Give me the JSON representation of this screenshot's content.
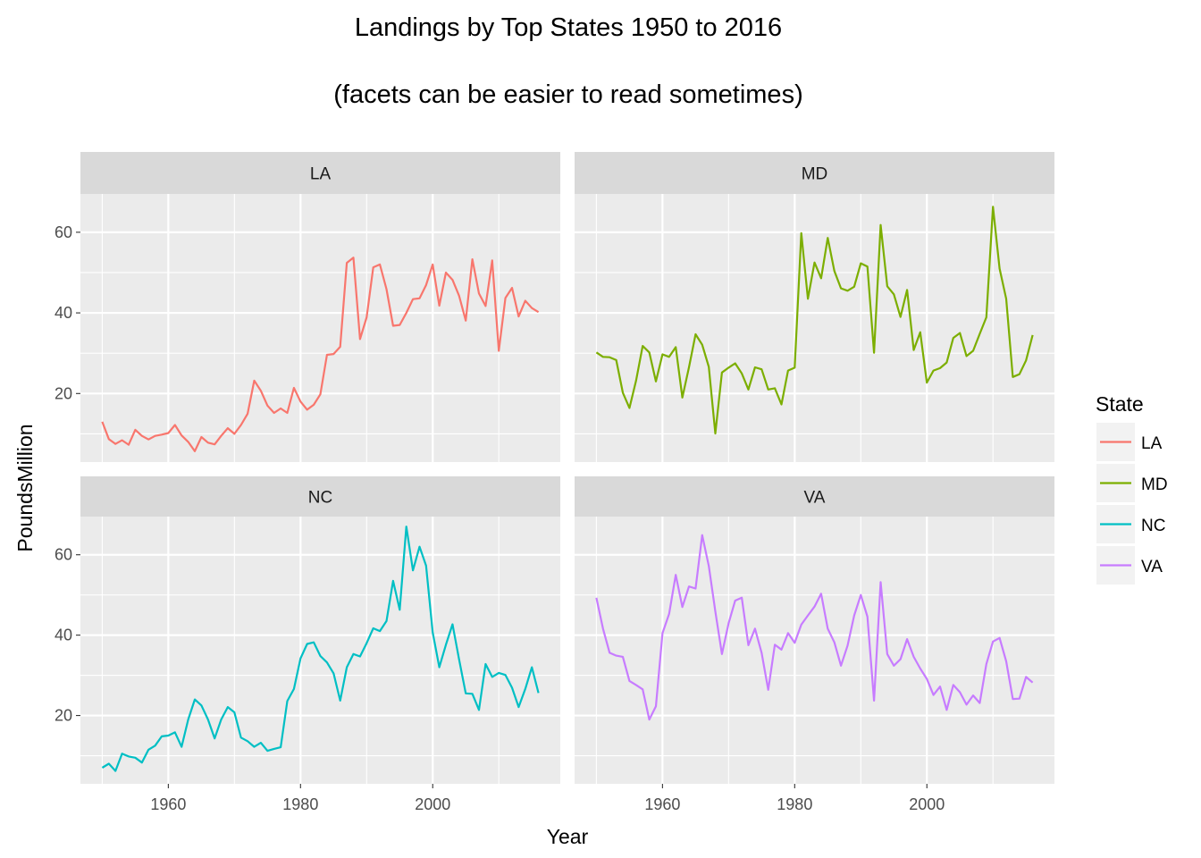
{
  "title": "Landings by Top States 1950 to 2016",
  "subtitle": "(facets can be easier to read sometimes)",
  "chart_data": {
    "type": "line",
    "title": "Landings by Top States 1950 to 2016",
    "subtitle": "(facets can be easier to read sometimes)",
    "xlabel": "Year",
    "ylabel": "PoundsMillion",
    "xlim": [
      1946.7,
      2019.3
    ],
    "ylim": [
      3.0,
      69.5
    ],
    "x_ticks": [
      1960,
      1980,
      2000
    ],
    "y_ticks": [
      20,
      40,
      60
    ],
    "grid": true,
    "facet_by": "State",
    "legend": {
      "title": "State",
      "position": "right"
    },
    "facets": [
      {
        "name": "LA",
        "color": "#F8766D",
        "x": [
          1950,
          1951,
          1952,
          1953,
          1954,
          1955,
          1956,
          1957,
          1958,
          1959,
          1960,
          1961,
          1962,
          1963,
          1964,
          1965,
          1966,
          1967,
          1968,
          1969,
          1970,
          1971,
          1972,
          1973,
          1974,
          1975,
          1976,
          1977,
          1978,
          1979,
          1980,
          1981,
          1982,
          1983,
          1984,
          1985,
          1986,
          1987,
          1988,
          1989,
          1990,
          1991,
          1992,
          1993,
          1994,
          1995,
          1996,
          1997,
          1998,
          1999,
          2000,
          2001,
          2002,
          2003,
          2004,
          2005,
          2006,
          2007,
          2008,
          2009,
          2010,
          2011,
          2012,
          2013,
          2014,
          2015,
          2016
        ],
        "values": [
          13.0,
          8.7,
          7.5,
          8.4,
          7.3,
          11.0,
          9.5,
          8.6,
          9.5,
          9.8,
          10.2,
          12.2,
          9.6,
          8.0,
          5.7,
          9.2,
          7.8,
          7.4,
          9.5,
          11.4,
          10.0,
          12.2,
          15.0,
          23.2,
          20.7,
          17.0,
          15.2,
          16.3,
          15.2,
          21.4,
          18.0,
          16.0,
          17.2,
          19.8,
          29.6,
          29.8,
          31.6,
          52.4,
          53.7,
          33.5,
          38.9,
          51.3,
          52.0,
          45.9,
          36.8,
          37.0,
          40.0,
          43.4,
          43.6,
          46.9,
          52.0,
          41.8,
          50.0,
          48.2,
          44.2,
          38.1,
          53.3,
          44.8,
          41.7,
          53.0,
          30.6,
          43.7,
          46.2,
          39.1,
          43.0,
          41.2,
          40.2
        ]
      },
      {
        "name": "MD",
        "color": "#7CAE00",
        "x": [
          1950,
          1951,
          1952,
          1953,
          1954,
          1955,
          1956,
          1957,
          1958,
          1959,
          1960,
          1961,
          1962,
          1963,
          1964,
          1965,
          1966,
          1967,
          1968,
          1969,
          1970,
          1971,
          1972,
          1973,
          1974,
          1975,
          1976,
          1977,
          1978,
          1979,
          1980,
          1981,
          1982,
          1983,
          1984,
          1985,
          1986,
          1987,
          1988,
          1989,
          1990,
          1991,
          1992,
          1993,
          1994,
          1995,
          1996,
          1997,
          1998,
          1999,
          2000,
          2001,
          2002,
          2003,
          2004,
          2005,
          2006,
          2007,
          2008,
          2009,
          2010,
          2011,
          2012,
          2013,
          2014,
          2015,
          2016
        ],
        "values": [
          30.2,
          29.1,
          29.0,
          28.3,
          20.2,
          16.4,
          23.2,
          31.8,
          30.2,
          23.0,
          29.7,
          29.1,
          31.5,
          19.0,
          26.5,
          34.7,
          32.1,
          26.6,
          10.1,
          25.2,
          26.4,
          27.5,
          25.0,
          21.0,
          26.5,
          26.0,
          21.0,
          21.3,
          17.3,
          25.7,
          26.4,
          59.8,
          43.5,
          52.5,
          48.6,
          58.6,
          50.4,
          46.1,
          45.5,
          46.5,
          52.3,
          51.5,
          30.1,
          61.8,
          46.6,
          44.6,
          39.0,
          45.7,
          30.8,
          35.2,
          22.7,
          25.7,
          26.3,
          27.7,
          33.8,
          35.0,
          29.3,
          30.6,
          34.8,
          38.9,
          66.3,
          51.0,
          43.5,
          24.1,
          24.8,
          28.2,
          34.5
        ]
      },
      {
        "name": "NC",
        "color": "#00BFC4",
        "x": [
          1950,
          1951,
          1952,
          1953,
          1954,
          1955,
          1956,
          1957,
          1958,
          1959,
          1960,
          1961,
          1962,
          1963,
          1964,
          1965,
          1966,
          1967,
          1968,
          1969,
          1970,
          1971,
          1972,
          1973,
          1974,
          1975,
          1976,
          1977,
          1978,
          1979,
          1980,
          1981,
          1982,
          1983,
          1984,
          1985,
          1986,
          1987,
          1988,
          1989,
          1990,
          1991,
          1992,
          1993,
          1994,
          1995,
          1996,
          1997,
          1998,
          1999,
          2000,
          2001,
          2002,
          2003,
          2004,
          2005,
          2006,
          2007,
          2008,
          2009,
          2010,
          2011,
          2012,
          2013,
          2014,
          2015,
          2016
        ],
        "values": [
          7.0,
          8.0,
          6.2,
          10.5,
          9.8,
          9.5,
          8.3,
          11.5,
          12.5,
          14.8,
          15.0,
          15.8,
          12.2,
          19.0,
          24.0,
          22.5,
          19.0,
          14.3,
          19.0,
          22.1,
          20.8,
          14.5,
          13.6,
          12.2,
          13.2,
          11.2,
          11.7,
          12.1,
          23.6,
          26.6,
          34.2,
          37.8,
          38.2,
          34.8,
          33.2,
          30.5,
          23.7,
          32.0,
          35.3,
          34.7,
          38.0,
          41.7,
          41.0,
          43.5,
          53.5,
          46.3,
          67.0,
          56.1,
          62.0,
          57.3,
          40.7,
          32.0,
          37.6,
          42.7,
          33.9,
          25.5,
          25.4,
          21.4,
          32.8,
          29.6,
          30.6,
          30.1,
          26.9,
          22.1,
          26.6,
          32.0,
          25.6
        ]
      },
      {
        "name": "VA",
        "color": "#C77CFF",
        "x": [
          1950,
          1951,
          1952,
          1953,
          1954,
          1955,
          1956,
          1957,
          1958,
          1959,
          1960,
          1961,
          1962,
          1963,
          1964,
          1965,
          1966,
          1967,
          1968,
          1969,
          1970,
          1971,
          1972,
          1973,
          1974,
          1975,
          1976,
          1977,
          1978,
          1979,
          1980,
          1981,
          1982,
          1983,
          1984,
          1985,
          1986,
          1987,
          1988,
          1989,
          1990,
          1991,
          1992,
          1993,
          1994,
          1995,
          1996,
          1997,
          1998,
          1999,
          2000,
          2001,
          2002,
          2003,
          2004,
          2005,
          2006,
          2007,
          2008,
          2009,
          2010,
          2011,
          2012,
          2013,
          2014,
          2015,
          2016
        ],
        "values": [
          49.3,
          41.6,
          35.6,
          34.9,
          34.6,
          28.6,
          27.6,
          26.5,
          19.0,
          22.3,
          40.5,
          45.3,
          55.0,
          47.0,
          52.1,
          51.6,
          64.9,
          57.2,
          45.9,
          35.3,
          42.9,
          48.6,
          49.3,
          37.5,
          41.6,
          35.6,
          26.4,
          37.6,
          36.4,
          40.5,
          38.1,
          42.6,
          44.9,
          47.1,
          50.3,
          41.6,
          38.2,
          32.4,
          37.4,
          44.9,
          50.0,
          44.6,
          23.7,
          53.2,
          35.3,
          32.4,
          34.0,
          39.0,
          34.6,
          31.7,
          29.1,
          25.1,
          27.2,
          21.4,
          27.6,
          25.8,
          22.7,
          25.0,
          23.1,
          32.8,
          38.4,
          39.3,
          33.5,
          24.1,
          24.2,
          29.6,
          28.2
        ]
      }
    ]
  }
}
